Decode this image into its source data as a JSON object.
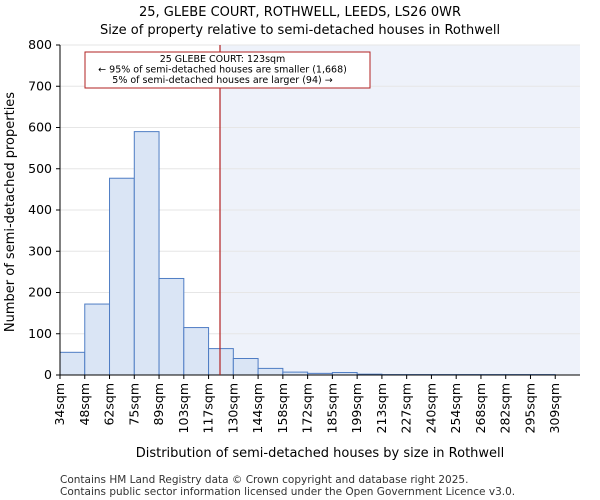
{
  "header": {
    "title_line1": "25, GLEBE COURT, ROTHWELL, LEEDS, LS26 0WR",
    "title_line2": "Size of property relative to semi-detached houses in Rothwell"
  },
  "chart_data": {
    "type": "bar",
    "title": "Size of property relative to semi-detached houses in Rothwell",
    "xlabel": "Distribution of semi-detached houses by size in Rothwell",
    "ylabel": "Number of semi-detached properties",
    "categories": [
      "34sqm",
      "48sqm",
      "62sqm",
      "75sqm",
      "89sqm",
      "103sqm",
      "117sqm",
      "130sqm",
      "144sqm",
      "158sqm",
      "172sqm",
      "185sqm",
      "199sqm",
      "213sqm",
      "227sqm",
      "240sqm",
      "254sqm",
      "268sqm",
      "282sqm",
      "295sqm",
      "309sqm"
    ],
    "values": [
      55,
      172,
      477,
      590,
      234,
      115,
      64,
      40,
      16,
      7,
      4,
      6,
      2,
      1,
      1,
      1,
      1,
      1,
      1,
      1,
      0
    ],
    "ylim": [
      0,
      800
    ],
    "yticks": [
      0,
      100,
      200,
      300,
      400,
      500,
      600,
      700,
      800
    ],
    "property_size_sqm": 123,
    "property_label": "25 GLEBE COURT: 123sqm",
    "annotation_lines": [
      "25 GLEBE COURT: 123sqm",
      "← 95% of semi-detached houses are smaller (1,668)",
      "5% of semi-detached houses are larger (94) →"
    ],
    "colors": {
      "bar_fill": "#dae5f5",
      "bar_edge": "#4f7dc4",
      "marker_line": "#b22222",
      "shade": "#eef2fa"
    }
  },
  "footer": {
    "line1": "Contains HM Land Registry data © Crown copyright and database right 2025.",
    "line2": "Contains public sector information licensed under the Open Government Licence v3.0."
  }
}
